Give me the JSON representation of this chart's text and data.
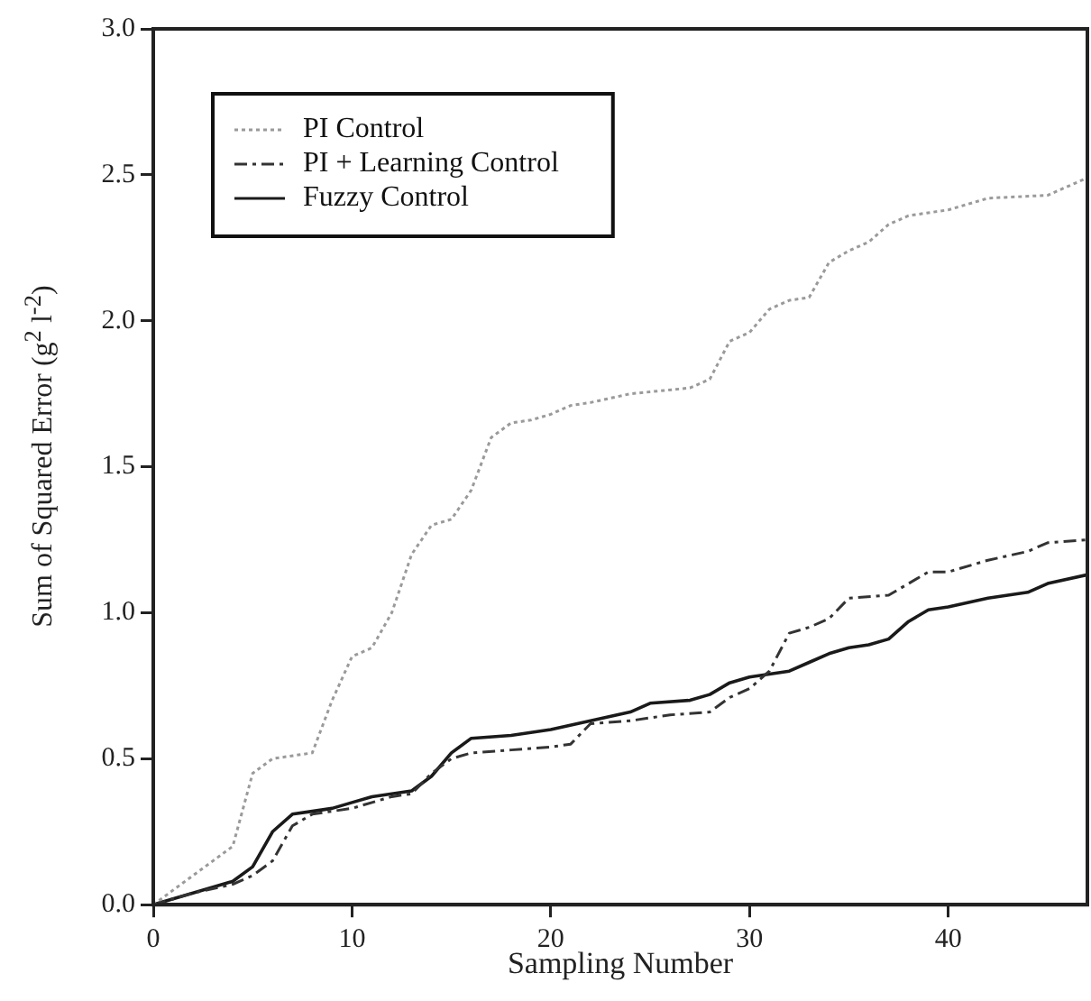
{
  "chart_data": {
    "type": "line",
    "xlabel": "Sampling Number",
    "ylabel": "Sum of Squared Error (g$^{2}$ l$^{-2}$)",
    "xlim": [
      0,
      47
    ],
    "xticks": [
      0,
      10,
      20,
      30,
      40
    ],
    "ylim": [
      0,
      3
    ],
    "yticks": [
      {
        "value": 0,
        "label": "0.0"
      },
      {
        "value": 0.5,
        "label": "0.5"
      },
      {
        "value": 1,
        "label": "1.0"
      },
      {
        "value": 1.5,
        "label": "1.5"
      },
      {
        "value": 2,
        "label": "2.0"
      },
      {
        "value": 2.5,
        "label": "2.5"
      },
      {
        "value": 3,
        "label": "3.0"
      }
    ],
    "grid": false,
    "legend": "top left",
    "marker": "none",
    "series": [
      {
        "name": "PI Control",
        "color": "#9a9a9a",
        "line_style": "dotted",
        "x": [
          0,
          2,
          4,
          5,
          6,
          8,
          9,
          10,
          11,
          12,
          13,
          14,
          15,
          16,
          17,
          18,
          19,
          20,
          21,
          22,
          24,
          27,
          28,
          29,
          30,
          31,
          32,
          33,
          34,
          35,
          36,
          37,
          38,
          40,
          41,
          42,
          45,
          47
        ],
        "values": [
          0,
          0.1,
          0.2,
          0.45,
          0.5,
          0.52,
          0.7,
          0.85,
          0.88,
          1.0,
          1.2,
          1.3,
          1.32,
          1.42,
          1.6,
          1.65,
          1.66,
          1.68,
          1.71,
          1.72,
          1.75,
          1.77,
          1.8,
          1.93,
          1.96,
          2.04,
          2.07,
          2.08,
          2.2,
          2.24,
          2.27,
          2.33,
          2.36,
          2.38,
          2.4,
          2.42,
          2.43,
          2.49
        ]
      },
      {
        "name": "PI + Learning Control",
        "color": "#333333",
        "line_style": "dashed",
        "x": [
          0,
          2,
          4,
          5,
          6,
          7,
          8,
          10,
          12,
          13,
          14,
          15,
          16,
          18,
          20,
          21,
          22,
          24,
          26,
          28,
          29,
          30,
          31,
          32,
          33,
          34,
          35,
          37,
          38,
          39,
          40,
          42,
          44,
          45,
          47
        ],
        "values": [
          0,
          0.04,
          0.07,
          0.1,
          0.15,
          0.27,
          0.31,
          0.33,
          0.37,
          0.38,
          0.45,
          0.5,
          0.52,
          0.53,
          0.54,
          0.55,
          0.62,
          0.63,
          0.65,
          0.66,
          0.71,
          0.74,
          0.8,
          0.93,
          0.95,
          0.98,
          1.05,
          1.06,
          1.1,
          1.14,
          1.14,
          1.18,
          1.21,
          1.24,
          1.25
        ]
      },
      {
        "name": "Fuzzy Control",
        "color": "#1a1a1a",
        "line_style": "solid",
        "x": [
          0,
          2,
          4,
          5,
          6,
          7,
          8,
          9,
          10,
          11,
          13,
          14,
          15,
          16,
          18,
          20,
          22,
          24,
          25,
          27,
          28,
          29,
          30,
          31,
          32,
          33,
          34,
          35,
          36,
          37,
          38,
          39,
          40,
          42,
          44,
          45,
          47
        ],
        "values": [
          0,
          0.04,
          0.08,
          0.13,
          0.25,
          0.31,
          0.32,
          0.33,
          0.35,
          0.37,
          0.39,
          0.44,
          0.52,
          0.57,
          0.58,
          0.6,
          0.63,
          0.66,
          0.69,
          0.7,
          0.72,
          0.76,
          0.78,
          0.79,
          0.8,
          0.83,
          0.86,
          0.88,
          0.89,
          0.91,
          0.97,
          1.01,
          1.02,
          1.05,
          1.07,
          1.1,
          1.13
        ]
      }
    ]
  }
}
